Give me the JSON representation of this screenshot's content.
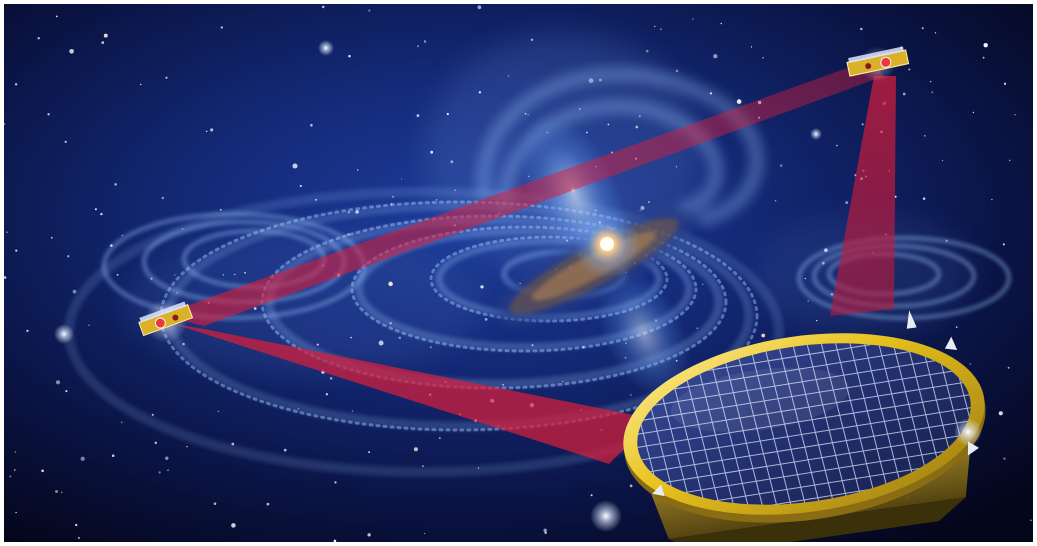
{
  "scene": {
    "subject": "space-illustration",
    "elements": [
      "starfield",
      "galaxy-core",
      "gravitational-wave-ripples",
      "laser-beam",
      "spacecraft",
      "solar-panel-disk"
    ]
  },
  "colors": {
    "space_deep": "#05061a",
    "space_blue": "#132a7a",
    "wave": "#9fc8ff",
    "laser": "#d81e3b",
    "gold": "#e8c21e",
    "panel": "#23306e",
    "panel_grid": "#d8e6ff",
    "galaxy_core": "#ffd08a"
  }
}
